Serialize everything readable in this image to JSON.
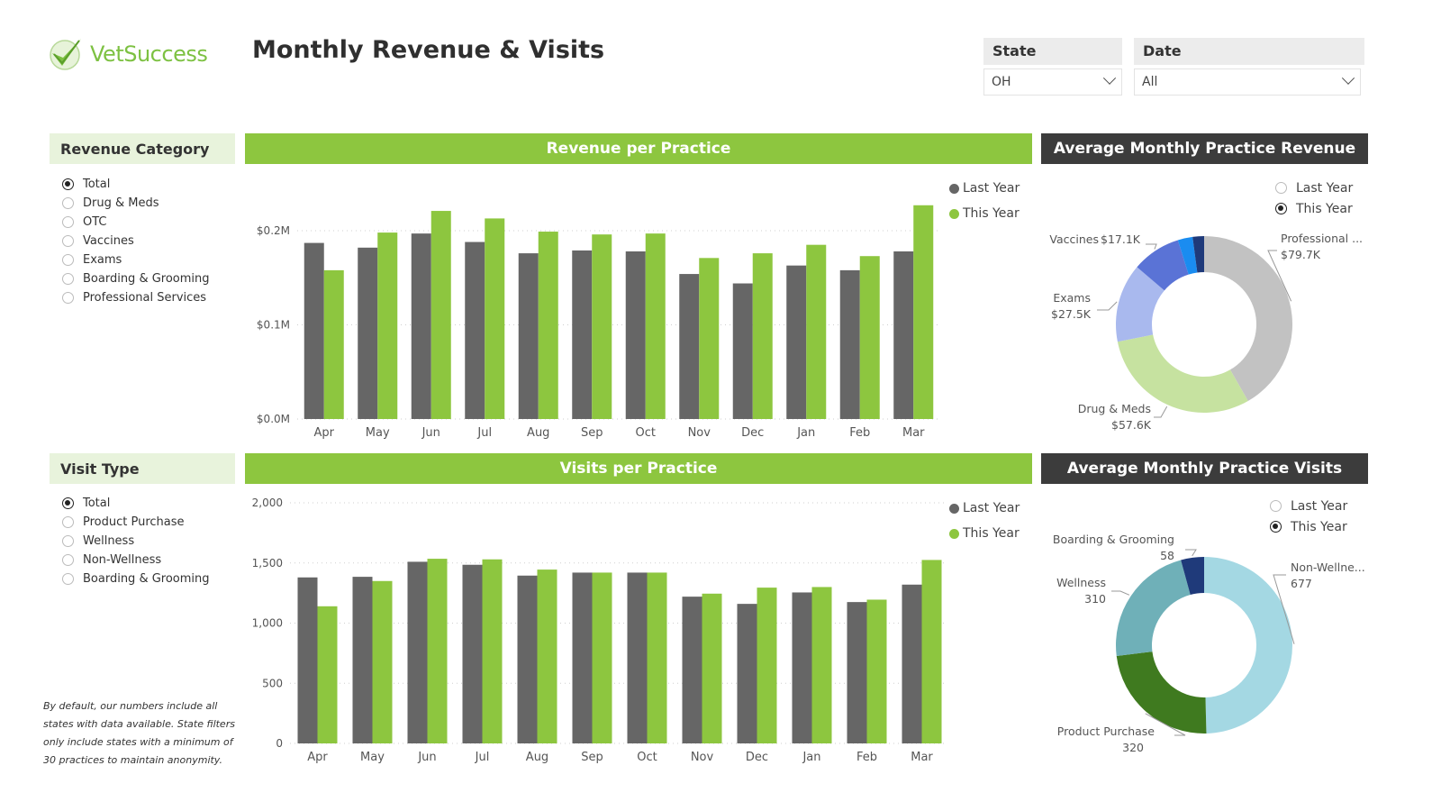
{
  "header": {
    "logo_text": "VetSuccess",
    "title": "Monthly Revenue & Visits"
  },
  "filters": {
    "state": {
      "label": "State",
      "value": "OH"
    },
    "date": {
      "label": "Date",
      "value": "All"
    }
  },
  "revenue_category": {
    "title": "Revenue Category",
    "options": [
      {
        "label": "Total",
        "selected": true
      },
      {
        "label": "Drug & Meds",
        "selected": false
      },
      {
        "label": "OTC",
        "selected": false
      },
      {
        "label": "Vaccines",
        "selected": false
      },
      {
        "label": "Exams",
        "selected": false
      },
      {
        "label": "Boarding & Grooming",
        "selected": false
      },
      {
        "label": "Professional Services",
        "selected": false
      }
    ]
  },
  "visit_type": {
    "title": "Visit Type",
    "options": [
      {
        "label": "Total",
        "selected": true
      },
      {
        "label": "Product Purchase",
        "selected": false
      },
      {
        "label": "Wellness",
        "selected": false
      },
      {
        "label": "Non-Wellness",
        "selected": false
      },
      {
        "label": "Boarding & Grooming",
        "selected": false
      }
    ]
  },
  "footnote": "By default, our numbers include all states with data available. State filters only include states with a minimum of 30 practices to maintain anonymity.",
  "colors": {
    "last_year": "#666666",
    "this_year": "#8dc63f",
    "accent_green": "#8dc63f",
    "dark_header": "#3c3c3c"
  },
  "revenue_panel": {
    "title": "Revenue per Practice",
    "legend": [
      "Last Year",
      "This Year"
    ]
  },
  "visits_panel": {
    "title": "Visits per Practice",
    "legend": [
      "Last Year",
      "This Year"
    ]
  },
  "avg_revenue_panel": {
    "title": "Average Monthly Practice Revenue",
    "options": [
      {
        "label": "Last Year",
        "selected": false
      },
      {
        "label": "This Year",
        "selected": true
      }
    ]
  },
  "avg_visits_panel": {
    "title": "Average Monthly Practice Visits",
    "options": [
      {
        "label": "Last Year",
        "selected": false
      },
      {
        "label": "This Year",
        "selected": true
      }
    ]
  },
  "chart_data": [
    {
      "type": "bar",
      "title": "Revenue per Practice",
      "categories": [
        "Apr",
        "May",
        "Jun",
        "Jul",
        "Aug",
        "Sep",
        "Oct",
        "Nov",
        "Dec",
        "Jan",
        "Feb",
        "Mar"
      ],
      "series": [
        {
          "name": "Last Year",
          "values": [
            0.187,
            0.182,
            0.197,
            0.188,
            0.176,
            0.179,
            0.178,
            0.154,
            0.144,
            0.163,
            0.158,
            0.178
          ]
        },
        {
          "name": "This Year",
          "values": [
            0.158,
            0.198,
            0.221,
            0.213,
            0.199,
            0.196,
            0.197,
            0.171,
            0.176,
            0.185,
            0.173,
            0.227
          ]
        }
      ],
      "yticks": [
        {
          "value": 0,
          "label": "$0.0M"
        },
        {
          "value": 0.1,
          "label": "$0.1M"
        },
        {
          "value": 0.2,
          "label": "$0.2M"
        }
      ],
      "ylim": [
        0,
        0.2
      ],
      "grid": true,
      "legend_position": "top-right"
    },
    {
      "type": "bar",
      "title": "Visits per Practice",
      "categories": [
        "Apr",
        "May",
        "Jun",
        "Jul",
        "Aug",
        "Sep",
        "Oct",
        "Nov",
        "Dec",
        "Jan",
        "Feb",
        "Mar"
      ],
      "series": [
        {
          "name": "Last Year",
          "values": [
            1380,
            1385,
            1510,
            1485,
            1395,
            1420,
            1420,
            1220,
            1160,
            1255,
            1175,
            1320
          ]
        },
        {
          "name": "This Year",
          "values": [
            1140,
            1350,
            1535,
            1530,
            1445,
            1420,
            1420,
            1245,
            1295,
            1300,
            1195,
            1525
          ]
        }
      ],
      "yticks": [
        {
          "value": 0,
          "label": "0"
        },
        {
          "value": 500,
          "label": "500"
        },
        {
          "value": 1000,
          "label": "1,000"
        },
        {
          "value": 1500,
          "label": "1,500"
        },
        {
          "value": 2000,
          "label": "2,000"
        }
      ],
      "ylim": [
        0,
        2000
      ],
      "grid": true,
      "legend_position": "top-right"
    },
    {
      "type": "pie",
      "title": "Average Monthly Practice Revenue",
      "slices": [
        {
          "label": "Professional ...",
          "value_label": "$79.7K",
          "value": 79.7,
          "color": "#c2c2c2"
        },
        {
          "label": "Drug & Meds",
          "value_label": "$57.6K",
          "value": 57.6,
          "color": "#c6e2a0"
        },
        {
          "label": "Exams",
          "value_label": "$27.5K",
          "value": 27.5,
          "color": "#a9b9ee"
        },
        {
          "label": "Vaccines",
          "value_label": "$17.1K",
          "value": 17.1,
          "color": "#5a73d6"
        },
        {
          "label": "",
          "value_label": "",
          "value": 5.2,
          "color": "#1a8cf0"
        },
        {
          "label": "",
          "value_label": "",
          "value": 4.0,
          "color": "#1f3a7a"
        }
      ]
    },
    {
      "type": "pie",
      "title": "Average Monthly Practice Visits",
      "slices": [
        {
          "label": "Non-Wellne...",
          "value_label": "677",
          "value": 677,
          "color": "#a4d8e3"
        },
        {
          "label": "Product Purchase",
          "value_label": "320",
          "value": 320,
          "color": "#3f7a1f"
        },
        {
          "label": "Wellness",
          "value_label": "310",
          "value": 310,
          "color": "#6fb0b8"
        },
        {
          "label": "Boarding & Grooming",
          "value_label": "58",
          "value": 58,
          "color": "#1f3a7a"
        }
      ]
    }
  ]
}
